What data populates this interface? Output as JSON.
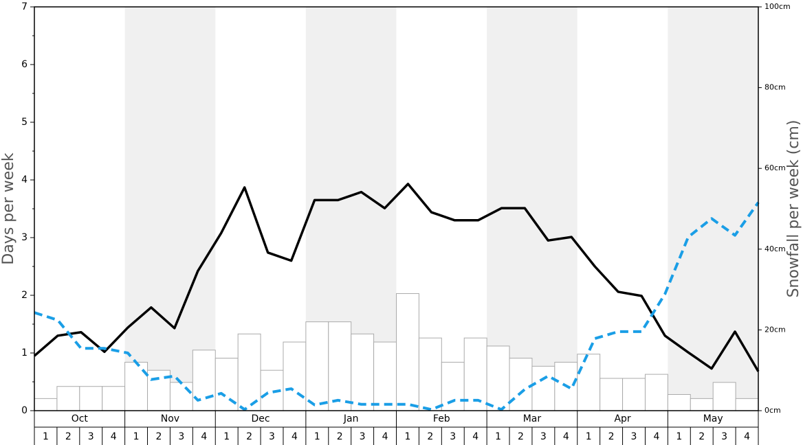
{
  "chart_data": {
    "type": "bar_line",
    "ylabel": "Days per week",
    "y2label": "Snowfall per week (cm)",
    "months": [
      "Oct",
      "Nov",
      "Dec",
      "Jan",
      "Feb",
      "Mar",
      "Apr",
      "May"
    ],
    "categories": [
      "1",
      "2",
      "3",
      "4",
      "1",
      "2",
      "3",
      "4",
      "1",
      "2",
      "3",
      "4",
      "1",
      "2",
      "3",
      "4",
      "1",
      "2",
      "3",
      "4",
      "1",
      "2",
      "3",
      "4",
      "1",
      "2",
      "3",
      "4",
      "1",
      "2",
      "3",
      "4"
    ],
    "ylim": [
      0,
      7
    ],
    "yticks": [
      0,
      1,
      2,
      3,
      4,
      5,
      6,
      7
    ],
    "yticks_minor": [
      0.5,
      1.5,
      2.5,
      3.5,
      4.5,
      5.5,
      6.5
    ],
    "y2lim": [
      0,
      100
    ],
    "y2ticks": [
      {
        "value": 0,
        "label": "0cm"
      },
      {
        "value": 20,
        "label": "20cm"
      },
      {
        "value": 40,
        "label": "40cm"
      },
      {
        "value": 60,
        "label": "60cm"
      },
      {
        "value": 80,
        "label": "80cm"
      },
      {
        "value": 100,
        "label": "100cm"
      }
    ],
    "shade_color": "#f0f0f0",
    "series": [
      {
        "kind": "bar",
        "axis": "y2",
        "color": "#ffffff",
        "edge": "#aaaaaa",
        "values": [
          3,
          6,
          6,
          6,
          12,
          10,
          7,
          15,
          13,
          19,
          10,
          17,
          22,
          22,
          19,
          17,
          29,
          18,
          12,
          18,
          16,
          13,
          11,
          12,
          14,
          8,
          8,
          9,
          4,
          3,
          7,
          3
        ]
      },
      {
        "kind": "line",
        "color": "#000000",
        "dashed": false,
        "values": [
          0.95,
          1.3,
          1.36,
          1.02,
          1.44,
          1.79,
          1.43,
          2.42,
          3.08,
          3.87,
          2.74,
          2.6,
          3.65,
          3.65,
          3.79,
          3.51,
          3.93,
          3.44,
          3.3,
          3.3,
          3.51,
          3.51,
          2.95,
          3.01,
          2.5,
          2.06,
          1.99,
          1.3,
          1.01,
          0.73,
          1.37,
          0.68
        ]
      },
      {
        "kind": "line",
        "color": "#1a9ee6",
        "dashed": true,
        "values": [
          1.7,
          1.57,
          1.08,
          1.08,
          1.0,
          0.54,
          0.6,
          0.18,
          0.3,
          0.02,
          0.31,
          0.38,
          0.1,
          0.18,
          0.11,
          0.11,
          0.11,
          0.02,
          0.18,
          0.18,
          0.02,
          0.37,
          0.6,
          0.38,
          1.25,
          1.37,
          1.37,
          2.02,
          3.01,
          3.33,
          3.04,
          3.61
        ]
      }
    ]
  }
}
